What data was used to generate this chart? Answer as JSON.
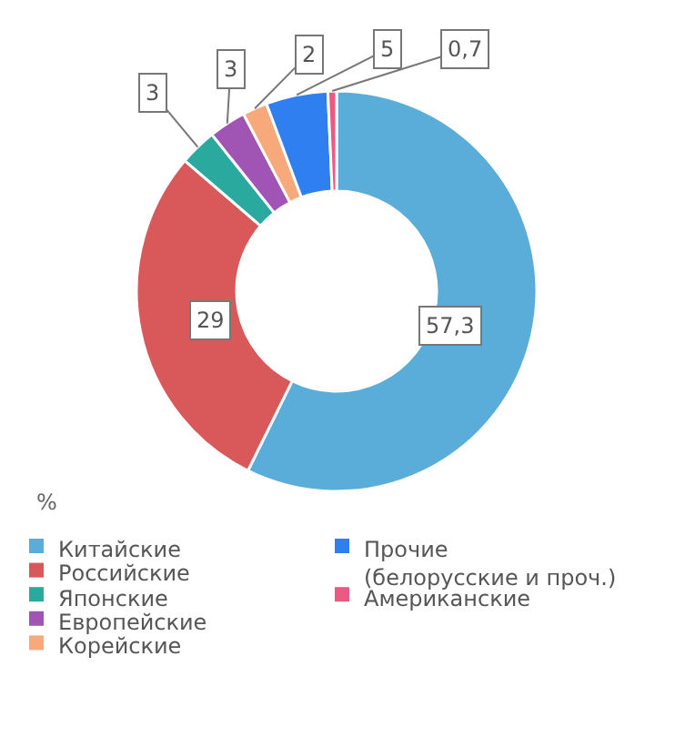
{
  "chart_data": {
    "type": "donut",
    "categories": [
      "Китайские",
      "Российские",
      "Японские",
      "Европейские",
      "Корейские",
      "Прочие\n(белорусские и проч.)",
      "Американские"
    ],
    "values": [
      57.3,
      29,
      3,
      3,
      2,
      5,
      0.7
    ],
    "value_labels": [
      "57,3",
      "29",
      "3",
      "3",
      "2",
      "5",
      "0,7"
    ],
    "colors": [
      "#5aadd8",
      "#d9595a",
      "#2aa99e",
      "#a055b5",
      "#f7a97c",
      "#2f7ff0",
      "#ec5a84"
    ],
    "annotations": [
      "%"
    ],
    "legend": "bottom left"
  }
}
